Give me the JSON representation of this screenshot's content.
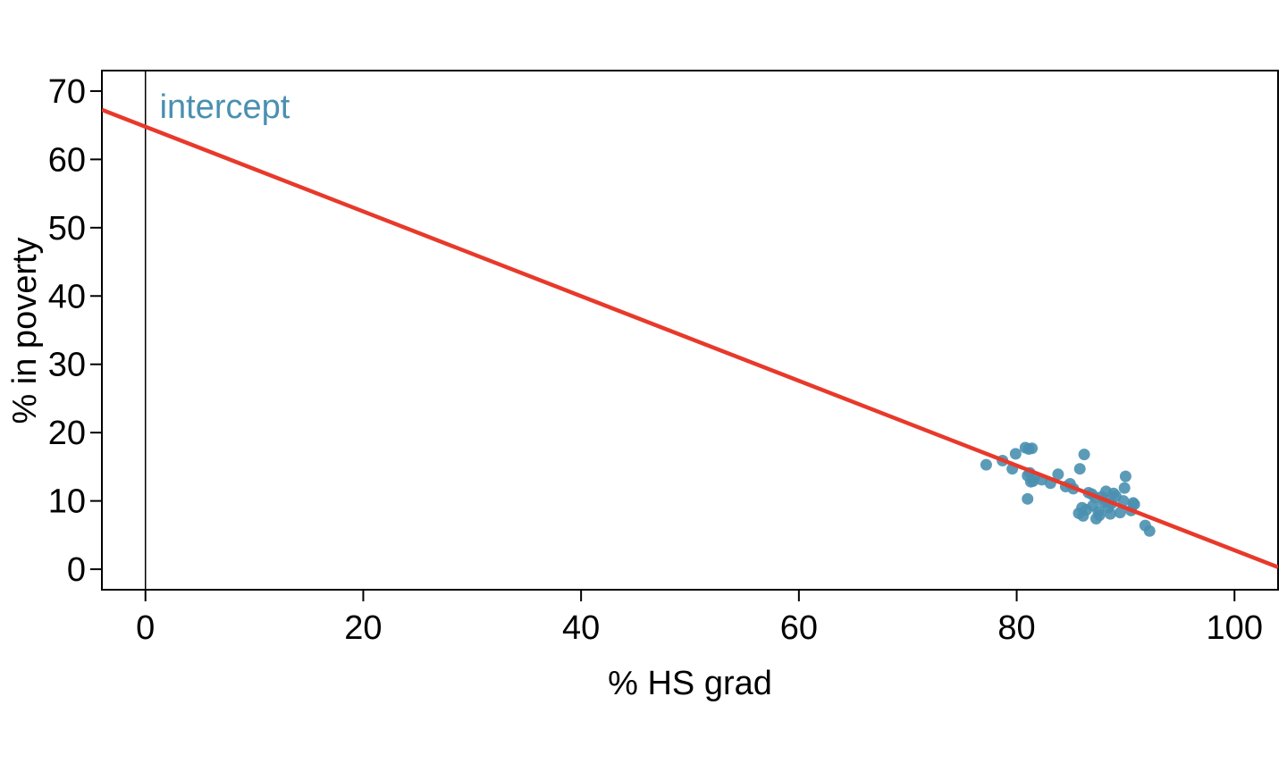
{
  "chart_data": {
    "type": "scatter",
    "xlabel": "% HS grad",
    "ylabel": "% in poverty",
    "xlim": [
      -4,
      104
    ],
    "ylim": [
      -3,
      73
    ],
    "xticks": [
      0,
      20,
      40,
      60,
      80,
      100
    ],
    "yticks": [
      0,
      10,
      20,
      30,
      40,
      50,
      60,
      70
    ],
    "grid": false,
    "legend": "none",
    "colors": {
      "points": "#4a90b0",
      "line": "#e8392b",
      "axis": "#000000",
      "annotation": "#4a90b0"
    },
    "regression_line": {
      "intercept": 64.78,
      "slope": -0.62,
      "x_range": [
        -4,
        104
      ]
    },
    "reference_line": {
      "x": 0
    },
    "annotation": {
      "text": "intercept",
      "x": 1.3,
      "y": 67.8
    },
    "series": [
      {
        "x": [
          77.2,
          78.7,
          79.6,
          79.9,
          80.8,
          81.1,
          81.4,
          81.6,
          81.0,
          81.2,
          81.5,
          81.3,
          81.0,
          82.3,
          83.1,
          83.8,
          84.5,
          84.9,
          85.2,
          85.8,
          85.7,
          86.2,
          86.0,
          86.1,
          86.4,
          86.6,
          86.9,
          87.2,
          87.0,
          87.5,
          87.3,
          87.6,
          87.8,
          88.0,
          88.2,
          88.1,
          88.4,
          88.6,
          88.7,
          88.9,
          89.1,
          89.5,
          89.9,
          89.8,
          90.0,
          90.5,
          90.8,
          90.7,
          91.8,
          92.2
        ],
        "y": [
          15.3,
          15.9,
          14.7,
          16.9,
          17.8,
          17.6,
          17.7,
          13.4,
          13.7,
          14.1,
          12.9,
          12.8,
          10.3,
          13.1,
          12.6,
          13.9,
          12.1,
          12.5,
          11.8,
          14.7,
          8.2,
          16.8,
          9.0,
          7.8,
          8.7,
          11.2,
          11.0,
          10.5,
          9.3,
          8.4,
          7.4,
          7.9,
          10.6,
          9.8,
          11.4,
          10.2,
          9.0,
          8.1,
          9.6,
          11.1,
          10.7,
          8.3,
          11.9,
          10.0,
          13.6,
          8.6,
          9.5,
          9.7,
          6.4,
          5.6
        ]
      }
    ]
  }
}
